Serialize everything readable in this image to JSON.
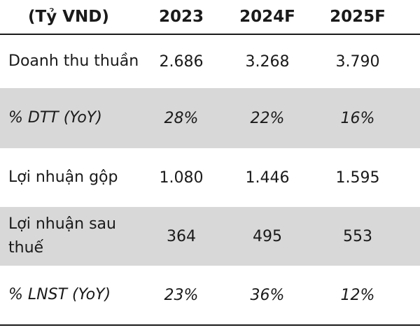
{
  "header": {
    "unit_label": "(Tỷ VND)",
    "years": [
      "2023",
      "2024F",
      "2025F"
    ]
  },
  "rows": [
    {
      "label": "Doanh thu thuần",
      "values": [
        "2.686",
        "3.268",
        "3.790"
      ],
      "italic": false,
      "shaded": false
    },
    {
      "label": "% DTT (YoY)",
      "values": [
        "28%",
        "22%",
        "16%"
      ],
      "italic": true,
      "shaded": true
    },
    {
      "label": "Lợi nhuận gộp",
      "values": [
        "1.080",
        "1.446",
        "1.595"
      ],
      "italic": false,
      "shaded": false
    },
    {
      "label": "Lợi nhuận sau thuế",
      "values": [
        "364",
        "495",
        "553"
      ],
      "italic": false,
      "shaded": true
    },
    {
      "label": "% LNST (YoY)",
      "values": [
        "23%",
        "36%",
        "12%"
      ],
      "italic": true,
      "shaded": false
    }
  ],
  "colors": {
    "shade": "#d8d8d8",
    "rule": "#1a1a1a",
    "text": "#1a1a1a"
  }
}
